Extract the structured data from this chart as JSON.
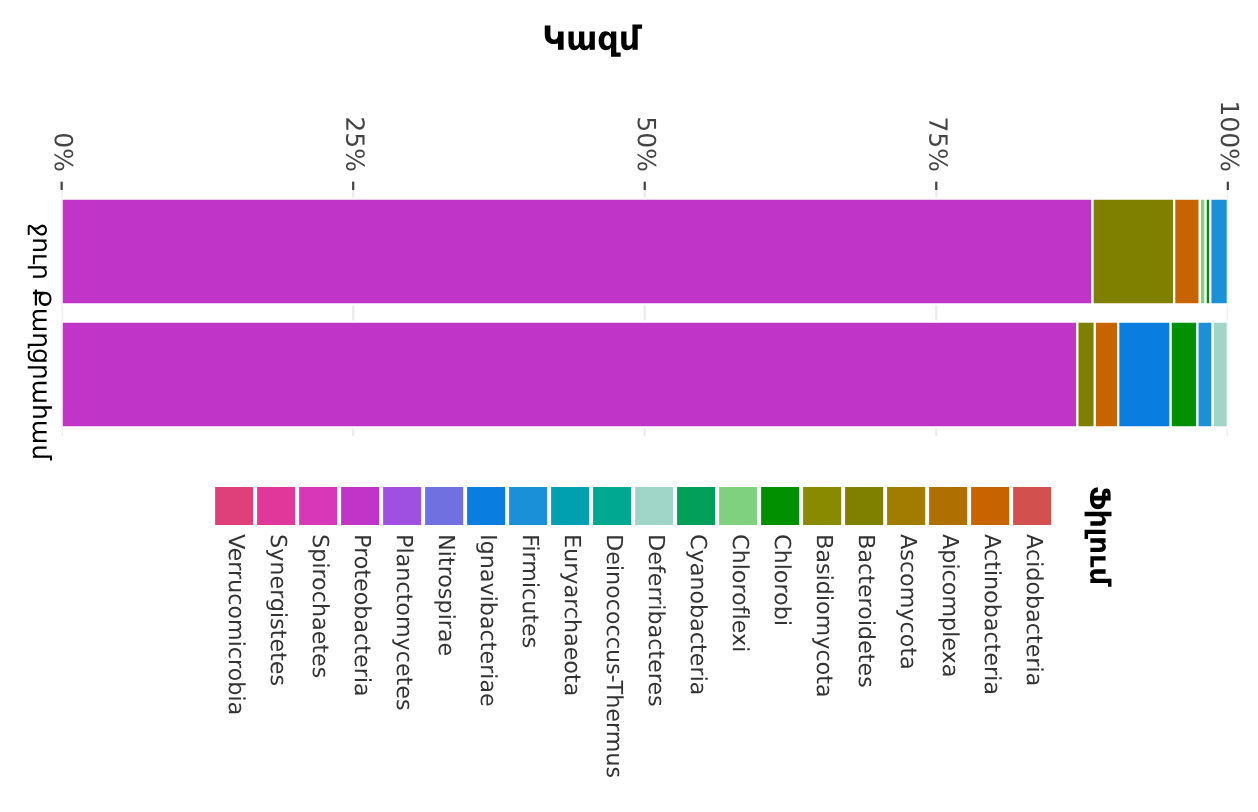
{
  "chart_data": {
    "type": "bar",
    "orientation": "horizontal",
    "stacked": true,
    "title": "Կազմ",
    "legend_title": "Ֆիլում",
    "categories": [
      "ջուր",
      "Քաղցրահամ"
    ],
    "xlim": [
      0,
      100
    ],
    "xticks": [
      {
        "value": 0,
        "label": "0%"
      },
      {
        "value": 25,
        "label": "25%"
      },
      {
        "value": 50,
        "label": "50%"
      },
      {
        "value": 75,
        "label": "75%"
      },
      {
        "value": 100,
        "label": "100%"
      }
    ],
    "grid": "x",
    "legend": "bottom",
    "series": [
      {
        "name": "Proteobacteria",
        "color": "#c035c8",
        "values": [
          88.4,
          87.1
        ]
      },
      {
        "name": "Bacteroidetes",
        "color": "#7f7f00",
        "values": [
          7.0,
          1.5
        ]
      },
      {
        "name": "Actinobacteria",
        "color": "#c86400",
        "values": [
          2.2,
          2.0
        ]
      },
      {
        "name": "Ignavibacteriae",
        "color": "#0a7ee0",
        "values": [
          0,
          4.5
        ]
      },
      {
        "name": "Chloroflexi",
        "color": "#7fd07f",
        "values": [
          0.5,
          0
        ]
      },
      {
        "name": "Chlorobi",
        "color": "#009000",
        "values": [
          0.4,
          2.3
        ]
      },
      {
        "name": "Firmicutes",
        "color": "#1a90d8",
        "values": [
          1.5,
          1.3
        ]
      },
      {
        "name": "Deferribacteres",
        "color": "#9fd6c8",
        "values": [
          0,
          1.3
        ]
      },
      {
        "name": "Acidobacteria",
        "color": "#d2504e",
        "values": [
          0,
          0
        ]
      },
      {
        "name": "Apicomplexa",
        "color": "#b07000",
        "values": [
          0,
          0
        ]
      },
      {
        "name": "Ascomycota",
        "color": "#a07c00",
        "values": [
          0,
          0
        ]
      },
      {
        "name": "Basidiomycota",
        "color": "#8a8a00",
        "values": [
          0,
          0
        ]
      },
      {
        "name": "Cyanobacteria",
        "color": "#00a05a",
        "values": [
          0,
          0
        ]
      },
      {
        "name": "Deinococcus-Thermus",
        "color": "#00a890",
        "values": [
          0,
          0
        ]
      },
      {
        "name": "Euryarchaeota",
        "color": "#00a0b0",
        "values": [
          0,
          0
        ]
      },
      {
        "name": "Nitrospirae",
        "color": "#7070e0",
        "values": [
          0,
          0
        ]
      },
      {
        "name": "Planctomycetes",
        "color": "#a050e0",
        "values": [
          0,
          0
        ]
      },
      {
        "name": "Spirochaetes",
        "color": "#d838b8",
        "values": [
          0,
          0
        ]
      },
      {
        "name": "Synergistetes",
        "color": "#e0389a",
        "values": [
          0,
          0
        ]
      },
      {
        "name": "Verrucomicrobia",
        "color": "#e0407a",
        "values": [
          0,
          0
        ]
      }
    ]
  }
}
